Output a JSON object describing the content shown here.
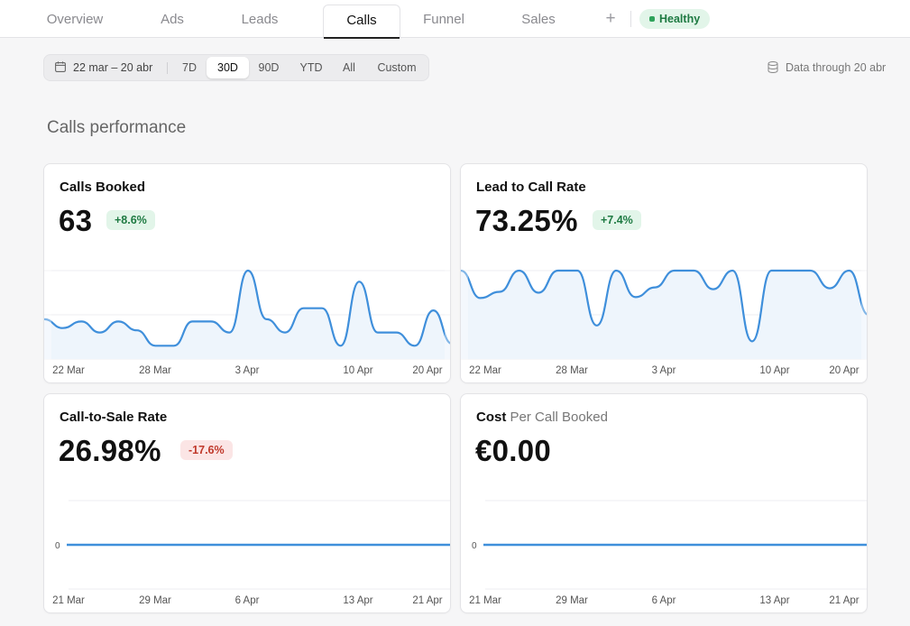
{
  "tabs": [
    {
      "label": "Overview",
      "active": false
    },
    {
      "label": "Ads",
      "active": false
    },
    {
      "label": "Leads",
      "active": false
    },
    {
      "label": "Calls",
      "active": true
    },
    {
      "label": "Funnel",
      "active": false
    },
    {
      "label": "Sales",
      "active": false
    }
  ],
  "tab_add_label": "+",
  "status_badge": "Healthy",
  "filter": {
    "date_range": "22 mar – 20 abr",
    "ranges": [
      "7D",
      "30D",
      "90D",
      "YTD",
      "All",
      "Custom"
    ],
    "selected": "30D"
  },
  "data_through": "Data through 20 abr",
  "section_title": "Calls performance",
  "colors": {
    "line": "#3f8fdb",
    "area": "#eef5fc",
    "badge_up_bg": "#e2f5e9",
    "badge_down_bg": "#fbe5e5"
  },
  "cards": [
    {
      "title": "Calls Booked",
      "title_sub": "",
      "value": "63",
      "change": "+8.6%",
      "change_dir": "up",
      "chart_data": {
        "type": "line",
        "x_ticks": [
          "22 Mar",
          "28 Mar",
          "3 Apr",
          "10 Apr",
          "20 Apr"
        ],
        "ylim": [
          0,
          4
        ],
        "values": [
          1.8,
          1.4,
          1.7,
          1.2,
          1.7,
          1.3,
          0.6,
          0.6,
          1.7,
          1.7,
          1.2,
          4.0,
          1.8,
          1.2,
          2.3,
          2.3,
          0.6,
          3.5,
          1.2,
          1.2,
          0.6,
          2.2,
          0.7
        ]
      }
    },
    {
      "title": "Lead to Call Rate",
      "title_sub": "",
      "value": "73.25%",
      "change": "+7.4%",
      "change_dir": "up",
      "chart_data": {
        "type": "line",
        "x_ticks": [
          "22 Mar",
          "28 Mar",
          "3 Apr",
          "10 Apr",
          "20 Apr"
        ],
        "ylim": [
          0,
          100
        ],
        "values": [
          100,
          69,
          76,
          100,
          75,
          100,
          100,
          38,
          100,
          70,
          81,
          100,
          100,
          79,
          100,
          20,
          100,
          100,
          100,
          80,
          100,
          50
        ]
      }
    },
    {
      "title": "Call-to-Sale Rate",
      "title_sub": "",
      "value": "26.98%",
      "change": "-17.6%",
      "change_dir": "down",
      "chart_data": {
        "type": "line",
        "x_ticks": [
          "21 Mar",
          "29 Mar",
          "6 Apr",
          "13 Apr",
          "21 Apr"
        ],
        "y_tick": "0",
        "values": [
          0,
          0,
          0,
          0,
          0,
          0,
          0,
          0,
          0,
          0
        ]
      }
    },
    {
      "title": "Cost",
      "title_sub": "Per Call Booked",
      "value": "€0.00",
      "change": "",
      "change_dir": "",
      "chart_data": {
        "type": "line",
        "x_ticks": [
          "21 Mar",
          "29 Mar",
          "6 Apr",
          "13 Apr",
          "21 Apr"
        ],
        "y_tick": "0",
        "values": [
          0,
          0,
          0,
          0,
          0,
          0,
          0,
          0,
          0,
          0
        ]
      }
    }
  ]
}
